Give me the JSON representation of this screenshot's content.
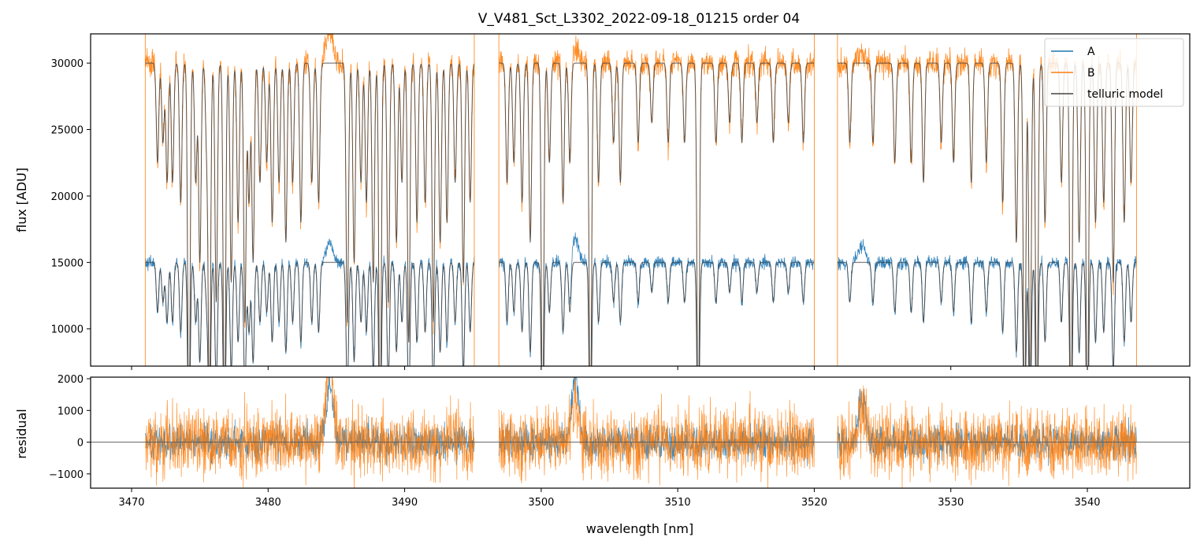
{
  "colors": {
    "A": "#1f77b4",
    "B": "#ff7f0e",
    "telluric": "#444444",
    "axis": "#000000",
    "zero_line": "#555555"
  },
  "chart_data": {
    "type": "line",
    "title": "V_V481_Sct_L3302_2022-09-18_01215  order 04",
    "xlabel": "wavelength [nm]",
    "xlim": [
      3467,
      3547.5
    ],
    "x_ticks": [
      3470,
      3480,
      3490,
      3500,
      3510,
      3520,
      3530,
      3540
    ],
    "segments": [
      [
        3471.0,
        3495.1
      ],
      [
        3496.9,
        3520.0
      ],
      [
        3521.7,
        3543.6
      ]
    ],
    "legend": {
      "location": "top-right",
      "entries": [
        "A",
        "B",
        "telluric model"
      ]
    },
    "panels": [
      {
        "name": "flux",
        "ylabel": "flux [ADU]",
        "ylim": [
          7200,
          32200
        ],
        "y_ticks": [
          10000,
          15000,
          20000,
          25000,
          30000
        ],
        "series": [
          {
            "name": "A",
            "continuum": 15000,
            "noise": 250
          },
          {
            "name": "B",
            "continuum": 30000,
            "noise": 500
          },
          {
            "name": "telluric model",
            "continuum_A": 15000,
            "continuum_B": 30000
          }
        ],
        "emission_features": [
          {
            "x": 3484.5,
            "excess_A": 1500,
            "excess_B": 2500
          },
          {
            "x": 3502.5,
            "excess_A": 1800,
            "excess_B": 1000
          },
          {
            "x": 3523.5,
            "excess_A": 1200,
            "excess_B": 800
          }
        ],
        "absorption_lines": [
          [
            3471.9,
            0.25
          ],
          [
            3472.3,
            0.2
          ],
          [
            3472.6,
            0.3
          ],
          [
            3473.0,
            0.3
          ],
          [
            3473.6,
            0.35
          ],
          [
            3474.2,
            0.95
          ],
          [
            3474.7,
            0.3
          ],
          [
            3475.0,
            0.5
          ],
          [
            3475.5,
            0.2
          ],
          [
            3475.7,
            0.9
          ],
          [
            3476.2,
            0.6
          ],
          [
            3476.8,
            0.95
          ],
          [
            3477.3,
            0.55
          ],
          [
            3477.8,
            0.4
          ],
          [
            3478.3,
            0.65
          ],
          [
            3478.6,
            0.35
          ],
          [
            3478.9,
            0.5
          ],
          [
            3479.4,
            0.3
          ],
          [
            3479.9,
            0.25
          ],
          [
            3480.3,
            0.4
          ],
          [
            3480.8,
            0.3
          ],
          [
            3481.3,
            0.45
          ],
          [
            3481.8,
            0.3
          ],
          [
            3482.4,
            0.4
          ],
          [
            3483.2,
            0.3
          ],
          [
            3483.7,
            0.35
          ],
          [
            3485.8,
            0.65
          ],
          [
            3486.3,
            0.5
          ],
          [
            3486.8,
            0.3
          ],
          [
            3487.2,
            0.35
          ],
          [
            3487.7,
            0.55
          ],
          [
            3488.2,
            0.95
          ],
          [
            3488.8,
            0.6
          ],
          [
            3489.4,
            0.45
          ],
          [
            3489.8,
            0.3
          ],
          [
            3490.3,
            0.7
          ],
          [
            3490.9,
            0.4
          ],
          [
            3491.5,
            0.35
          ],
          [
            3492.1,
            0.65
          ],
          [
            3492.6,
            0.45
          ],
          [
            3493.1,
            0.4
          ],
          [
            3493.7,
            0.3
          ],
          [
            3494.3,
            0.55
          ],
          [
            3494.8,
            0.35
          ],
          [
            3497.5,
            0.3
          ],
          [
            3498.0,
            0.25
          ],
          [
            3498.6,
            0.35
          ],
          [
            3499.2,
            0.45
          ],
          [
            3500.1,
            0.95
          ],
          [
            3500.6,
            0.25
          ],
          [
            3501.6,
            0.35
          ],
          [
            3502.1,
            0.25
          ],
          [
            3503.6,
            0.95
          ],
          [
            3504.2,
            0.3
          ],
          [
            3505.3,
            0.2
          ],
          [
            3505.8,
            0.3
          ],
          [
            3507.1,
            0.2
          ],
          [
            3508.1,
            0.15
          ],
          [
            3509.3,
            0.2
          ],
          [
            3510.5,
            0.2
          ],
          [
            3511.5,
            0.95
          ],
          [
            3512.8,
            0.2
          ],
          [
            3513.8,
            0.15
          ],
          [
            3514.7,
            0.2
          ],
          [
            3515.8,
            0.15
          ],
          [
            3517.0,
            0.2
          ],
          [
            3518.1,
            0.15
          ],
          [
            3519.2,
            0.2
          ],
          [
            3522.6,
            0.2
          ],
          [
            3524.3,
            0.2
          ],
          [
            3525.9,
            0.25
          ],
          [
            3527.1,
            0.25
          ],
          [
            3528.0,
            0.3
          ],
          [
            3529.3,
            0.2
          ],
          [
            3530.2,
            0.25
          ],
          [
            3531.5,
            0.3
          ],
          [
            3532.6,
            0.25
          ],
          [
            3533.8,
            0.35
          ],
          [
            3534.8,
            0.45
          ],
          [
            3535.4,
            0.95
          ],
          [
            3535.8,
            0.85
          ],
          [
            3536.3,
            0.95
          ],
          [
            3536.9,
            0.4
          ],
          [
            3538.1,
            0.3
          ],
          [
            3538.8,
            0.95
          ],
          [
            3539.4,
            0.45
          ],
          [
            3540.0,
            0.95
          ],
          [
            3540.6,
            0.4
          ],
          [
            3541.2,
            0.35
          ],
          [
            3541.9,
            0.55
          ],
          [
            3542.7,
            0.4
          ],
          [
            3543.2,
            0.3
          ]
        ]
      },
      {
        "name": "residual",
        "ylabel": "residual",
        "ylim": [
          -1450,
          2050
        ],
        "y_ticks": [
          -1000,
          0,
          1000,
          2000
        ],
        "zero_line": 0,
        "series": [
          {
            "name": "A",
            "noise": 280
          },
          {
            "name": "B",
            "noise": 550
          }
        ]
      }
    ]
  }
}
